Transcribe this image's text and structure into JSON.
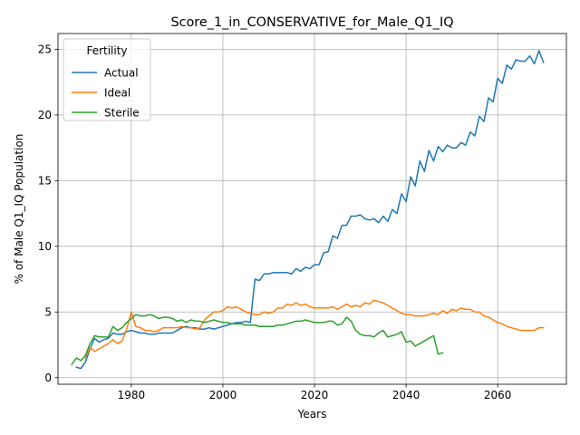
{
  "chart_data": {
    "type": "line",
    "title": "Score_1_in_CONSERVATIVE_for_Male_Q1_IQ",
    "xlabel": "Years",
    "ylabel": "% of Male Q1_IQ Population",
    "xlim": [
      1964,
      2075
    ],
    "ylim": [
      -0.5,
      26.2
    ],
    "xticks": [
      1980,
      2000,
      2020,
      2040,
      2060
    ],
    "yticks": [
      0,
      5,
      10,
      15,
      20,
      25
    ],
    "grid": true,
    "legend": {
      "title": "Fertility",
      "placement": "top-left"
    },
    "series": [
      {
        "name": "Actual",
        "color": "#1f77b4",
        "points": [
          [
            1968,
            0.8
          ],
          [
            1969,
            0.7
          ],
          [
            1970,
            1.2
          ],
          [
            1971,
            2.2
          ],
          [
            1972,
            3.0
          ],
          [
            1973,
            2.7
          ],
          [
            1974,
            2.9
          ],
          [
            1975,
            3.0
          ],
          [
            1976,
            3.4
          ],
          [
            1977,
            3.3
          ],
          [
            1978,
            3.3
          ],
          [
            1979,
            3.5
          ],
          [
            1980,
            3.6
          ],
          [
            1981,
            3.5
          ],
          [
            1982,
            3.4
          ],
          [
            1983,
            3.4
          ],
          [
            1984,
            3.3
          ],
          [
            1985,
            3.3
          ],
          [
            1986,
            3.4
          ],
          [
            1987,
            3.4
          ],
          [
            1988,
            3.4
          ],
          [
            1989,
            3.4
          ],
          [
            1990,
            3.6
          ],
          [
            1991,
            3.8
          ],
          [
            1992,
            3.9
          ],
          [
            1993,
            3.8
          ],
          [
            1994,
            3.8
          ],
          [
            1995,
            3.7
          ],
          [
            1996,
            3.7
          ],
          [
            1997,
            3.8
          ],
          [
            1998,
            3.7
          ],
          [
            1999,
            3.8
          ],
          [
            2000,
            3.9
          ],
          [
            2001,
            4.0
          ],
          [
            2002,
            4.1
          ],
          [
            2003,
            4.2
          ],
          [
            2004,
            4.2
          ],
          [
            2005,
            4.3
          ],
          [
            2006,
            4.2
          ],
          [
            2007,
            7.5
          ],
          [
            2008,
            7.4
          ],
          [
            2009,
            7.9
          ],
          [
            2010,
            7.9
          ],
          [
            2011,
            8.0
          ],
          [
            2012,
            8.0
          ],
          [
            2013,
            8.0
          ],
          [
            2014,
            8.0
          ],
          [
            2015,
            7.9
          ],
          [
            2016,
            8.3
          ],
          [
            2017,
            8.1
          ],
          [
            2018,
            8.4
          ],
          [
            2019,
            8.3
          ],
          [
            2020,
            8.6
          ],
          [
            2021,
            8.6
          ],
          [
            2022,
            9.5
          ],
          [
            2023,
            9.6
          ],
          [
            2024,
            10.8
          ],
          [
            2025,
            10.6
          ],
          [
            2026,
            11.6
          ],
          [
            2027,
            11.6
          ],
          [
            2028,
            12.3
          ],
          [
            2029,
            12.3
          ],
          [
            2030,
            12.4
          ],
          [
            2031,
            12.1
          ],
          [
            2032,
            12.0
          ],
          [
            2033,
            12.1
          ],
          [
            2034,
            11.8
          ],
          [
            2035,
            12.3
          ],
          [
            2036,
            11.9
          ],
          [
            2037,
            12.8
          ],
          [
            2038,
            12.5
          ],
          [
            2039,
            14.0
          ],
          [
            2040,
            13.4
          ],
          [
            2041,
            15.3
          ],
          [
            2042,
            14.6
          ],
          [
            2043,
            16.5
          ],
          [
            2044,
            15.7
          ],
          [
            2045,
            17.3
          ],
          [
            2046,
            16.5
          ],
          [
            2047,
            17.6
          ],
          [
            2048,
            17.2
          ],
          [
            2049,
            17.7
          ],
          [
            2050,
            17.5
          ],
          [
            2051,
            17.5
          ],
          [
            2052,
            17.9
          ],
          [
            2053,
            17.7
          ],
          [
            2054,
            18.7
          ],
          [
            2055,
            18.4
          ],
          [
            2056,
            19.9
          ],
          [
            2057,
            19.5
          ],
          [
            2058,
            21.3
          ],
          [
            2059,
            21.0
          ],
          [
            2060,
            22.8
          ],
          [
            2061,
            22.4
          ],
          [
            2062,
            23.8
          ],
          [
            2063,
            23.5
          ],
          [
            2064,
            24.2
          ],
          [
            2065,
            24.1
          ],
          [
            2066,
            24.1
          ],
          [
            2067,
            24.5
          ],
          [
            2068,
            23.9
          ],
          [
            2069,
            24.9
          ],
          [
            2070,
            24.0
          ]
        ]
      },
      {
        "name": "Ideal",
        "color": "#ff7f0e",
        "points": [
          [
            1970,
            1.5
          ],
          [
            1971,
            2.3
          ],
          [
            1972,
            2.0
          ],
          [
            1973,
            2.2
          ],
          [
            1974,
            2.4
          ],
          [
            1975,
            2.6
          ],
          [
            1976,
            2.9
          ],
          [
            1977,
            2.6
          ],
          [
            1978,
            2.8
          ],
          [
            1979,
            3.7
          ],
          [
            1980,
            5.0
          ],
          [
            1981,
            3.9
          ],
          [
            1982,
            3.8
          ],
          [
            1983,
            3.6
          ],
          [
            1984,
            3.6
          ],
          [
            1985,
            3.5
          ],
          [
            1986,
            3.6
          ],
          [
            1987,
            3.8
          ],
          [
            1988,
            3.8
          ],
          [
            1989,
            3.8
          ],
          [
            1990,
            3.8
          ],
          [
            1991,
            3.9
          ],
          [
            1992,
            3.8
          ],
          [
            1993,
            3.8
          ],
          [
            1994,
            3.7
          ],
          [
            1995,
            3.8
          ],
          [
            1996,
            4.4
          ],
          [
            1997,
            4.7
          ],
          [
            1998,
            5.0
          ],
          [
            1999,
            5.0
          ],
          [
            2000,
            5.1
          ],
          [
            2001,
            5.4
          ],
          [
            2002,
            5.3
          ],
          [
            2003,
            5.4
          ],
          [
            2004,
            5.2
          ],
          [
            2005,
            5.0
          ],
          [
            2006,
            4.9
          ],
          [
            2007,
            4.8
          ],
          [
            2008,
            4.8
          ],
          [
            2009,
            5.0
          ],
          [
            2010,
            4.9
          ],
          [
            2011,
            5.0
          ],
          [
            2012,
            5.3
          ],
          [
            2013,
            5.3
          ],
          [
            2014,
            5.6
          ],
          [
            2015,
            5.5
          ],
          [
            2016,
            5.7
          ],
          [
            2017,
            5.5
          ],
          [
            2018,
            5.6
          ],
          [
            2019,
            5.4
          ],
          [
            2020,
            5.3
          ],
          [
            2021,
            5.3
          ],
          [
            2022,
            5.3
          ],
          [
            2023,
            5.3
          ],
          [
            2024,
            5.4
          ],
          [
            2025,
            5.2
          ],
          [
            2026,
            5.4
          ],
          [
            2027,
            5.6
          ],
          [
            2028,
            5.4
          ],
          [
            2029,
            5.5
          ],
          [
            2030,
            5.4
          ],
          [
            2031,
            5.7
          ],
          [
            2032,
            5.6
          ],
          [
            2033,
            5.9
          ],
          [
            2034,
            5.8
          ],
          [
            2035,
            5.7
          ],
          [
            2036,
            5.5
          ],
          [
            2037,
            5.3
          ],
          [
            2038,
            5.1
          ],
          [
            2039,
            4.9
          ],
          [
            2040,
            4.8
          ],
          [
            2041,
            4.8
          ],
          [
            2042,
            4.7
          ],
          [
            2043,
            4.7
          ],
          [
            2044,
            4.7
          ],
          [
            2045,
            4.8
          ],
          [
            2046,
            4.9
          ],
          [
            2047,
            4.8
          ],
          [
            2048,
            5.1
          ],
          [
            2049,
            4.9
          ],
          [
            2050,
            5.2
          ],
          [
            2051,
            5.1
          ],
          [
            2052,
            5.3
          ],
          [
            2053,
            5.2
          ],
          [
            2054,
            5.2
          ],
          [
            2055,
            5.0
          ],
          [
            2056,
            5.0
          ],
          [
            2057,
            4.7
          ],
          [
            2058,
            4.6
          ],
          [
            2059,
            4.4
          ],
          [
            2060,
            4.2
          ],
          [
            2061,
            4.1
          ],
          [
            2062,
            3.9
          ],
          [
            2063,
            3.8
          ],
          [
            2064,
            3.7
          ],
          [
            2065,
            3.6
          ],
          [
            2066,
            3.6
          ],
          [
            2067,
            3.6
          ],
          [
            2068,
            3.6
          ],
          [
            2069,
            3.8
          ],
          [
            2070,
            3.8
          ]
        ]
      },
      {
        "name": "Sterile",
        "color": "#2ca02c",
        "points": [
          [
            1967,
            1.0
          ],
          [
            1968,
            1.5
          ],
          [
            1969,
            1.3
          ],
          [
            1970,
            1.7
          ],
          [
            1971,
            2.6
          ],
          [
            1972,
            3.2
          ],
          [
            1973,
            3.1
          ],
          [
            1974,
            3.1
          ],
          [
            1975,
            3.1
          ],
          [
            1976,
            3.9
          ],
          [
            1977,
            3.6
          ],
          [
            1978,
            3.8
          ],
          [
            1979,
            4.2
          ],
          [
            1980,
            4.5
          ],
          [
            1981,
            4.8
          ],
          [
            1982,
            4.7
          ],
          [
            1983,
            4.7
          ],
          [
            1984,
            4.8
          ],
          [
            1985,
            4.7
          ],
          [
            1986,
            4.5
          ],
          [
            1987,
            4.6
          ],
          [
            1988,
            4.6
          ],
          [
            1989,
            4.5
          ],
          [
            1990,
            4.3
          ],
          [
            1991,
            4.4
          ],
          [
            1992,
            4.2
          ],
          [
            1993,
            4.4
          ],
          [
            1994,
            4.3
          ],
          [
            1995,
            4.3
          ],
          [
            1996,
            4.2
          ],
          [
            1997,
            4.3
          ],
          [
            1998,
            4.4
          ],
          [
            1999,
            4.3
          ],
          [
            2000,
            4.2
          ],
          [
            2001,
            4.2
          ],
          [
            2002,
            4.1
          ],
          [
            2003,
            4.1
          ],
          [
            2004,
            4.1
          ],
          [
            2005,
            4.0
          ],
          [
            2006,
            4.0
          ],
          [
            2007,
            4.0
          ],
          [
            2008,
            3.9
          ],
          [
            2009,
            3.9
          ],
          [
            2010,
            3.9
          ],
          [
            2011,
            3.9
          ],
          [
            2012,
            4.0
          ],
          [
            2013,
            4.0
          ],
          [
            2014,
            4.1
          ],
          [
            2015,
            4.2
          ],
          [
            2016,
            4.3
          ],
          [
            2017,
            4.3
          ],
          [
            2018,
            4.4
          ],
          [
            2019,
            4.3
          ],
          [
            2020,
            4.2
          ],
          [
            2021,
            4.2
          ],
          [
            2022,
            4.2
          ],
          [
            2023,
            4.3
          ],
          [
            2024,
            4.3
          ],
          [
            2025,
            4.0
          ],
          [
            2026,
            4.1
          ],
          [
            2027,
            4.6
          ],
          [
            2028,
            4.3
          ],
          [
            2029,
            3.6
          ],
          [
            2030,
            3.3
          ],
          [
            2031,
            3.2
          ],
          [
            2032,
            3.2
          ],
          [
            2033,
            3.1
          ],
          [
            2034,
            3.4
          ],
          [
            2035,
            3.6
          ],
          [
            2036,
            3.1
          ],
          [
            2037,
            3.2
          ],
          [
            2038,
            3.3
          ],
          [
            2039,
            3.5
          ],
          [
            2040,
            2.7
          ],
          [
            2041,
            2.8
          ],
          [
            2042,
            2.4
          ],
          [
            2043,
            2.6
          ],
          [
            2044,
            2.8
          ],
          [
            2045,
            3.0
          ],
          [
            2046,
            3.2
          ],
          [
            2047,
            1.8
          ],
          [
            2048,
            1.9
          ]
        ]
      }
    ]
  }
}
